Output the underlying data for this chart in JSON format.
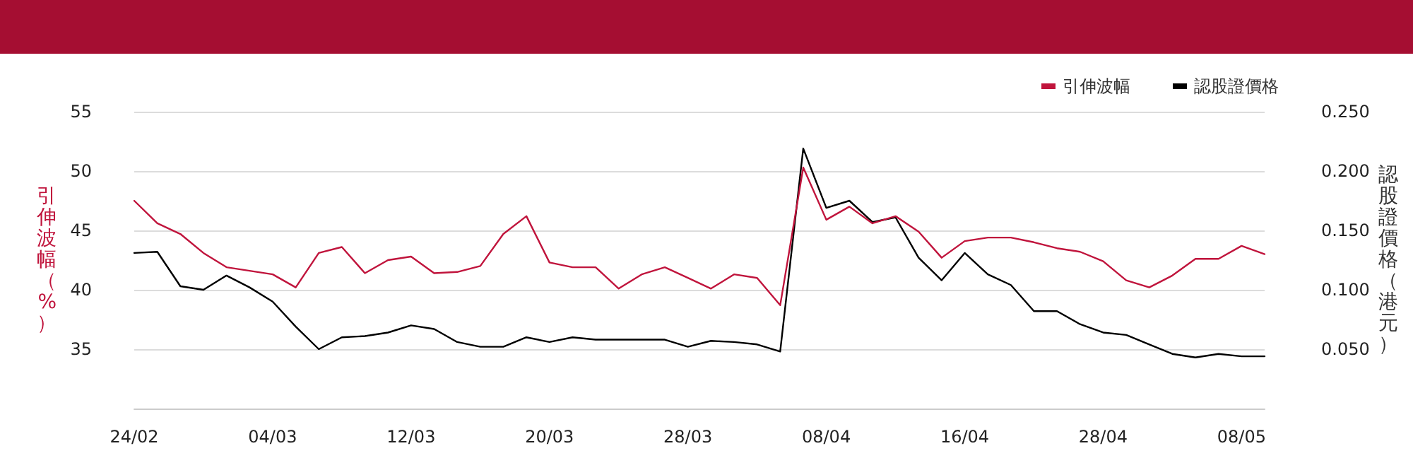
{
  "chart_data": {
    "type": "line",
    "ylabel": "引伸波幅（%）",
    "y2label": "認股證價格（港元）",
    "categories": [
      "24/02",
      null,
      null,
      null,
      null,
      null,
      "04/03",
      null,
      null,
      null,
      null,
      null,
      "12/03",
      null,
      null,
      null,
      null,
      null,
      "20/03",
      null,
      null,
      null,
      null,
      null,
      "28/03",
      null,
      null,
      null,
      null,
      null,
      "08/04",
      null,
      null,
      null,
      null,
      null,
      "16/04",
      null,
      null,
      null,
      null,
      null,
      "28/04",
      null,
      null,
      null,
      null,
      null,
      "08/05",
      null
    ],
    "series": [
      {
        "name": "引伸波幅",
        "color": "#c0143c",
        "values": [
          47.5,
          45.6,
          44.7,
          43.1,
          41.9,
          41.6,
          41.3,
          40.2,
          43.1,
          43.6,
          41.4,
          42.5,
          42.8,
          41.4,
          41.5,
          42.0,
          44.7,
          46.2,
          42.3,
          41.9,
          41.9,
          40.1,
          41.3,
          41.9,
          41.0,
          40.1,
          41.3,
          41.0,
          38.7,
          50.3,
          45.9,
          47.0,
          45.6,
          46.2,
          44.9,
          42.7,
          44.1,
          44.4,
          44.4,
          44.0,
          43.5,
          43.2,
          42.4,
          40.8,
          40.2,
          41.2,
          42.6,
          42.6,
          43.7,
          43.0
        ]
      },
      {
        "name": "認股證價格",
        "color": "#000000",
        "axis": "y2",
        "values": [
          0.131,
          0.132,
          0.103,
          0.1,
          0.112,
          0.102,
          0.09,
          0.069,
          0.05,
          0.06,
          0.061,
          0.064,
          0.07,
          0.067,
          0.056,
          0.052,
          0.052,
          0.06,
          0.056,
          0.06,
          0.058,
          0.058,
          0.058,
          0.058,
          0.052,
          0.057,
          0.056,
          0.054,
          0.048,
          0.219,
          0.169,
          0.175,
          0.157,
          0.161,
          0.127,
          0.108,
          0.131,
          0.113,
          0.104,
          0.082,
          0.082,
          0.071,
          0.064,
          0.062,
          0.054,
          0.046,
          0.043,
          0.046,
          0.044,
          0.044
        ]
      }
    ],
    "ylim": [
      30,
      55
    ],
    "yticks": [
      35,
      40,
      45,
      50,
      55
    ],
    "y2lim": [
      0,
      0.25
    ],
    "y2ticks": [
      {
        "value": 0.05,
        "label": "0.050"
      },
      {
        "value": 0.1,
        "label": "0.100"
      },
      {
        "value": 0.15,
        "label": "0.150"
      },
      {
        "value": 0.2,
        "label": "0.200"
      },
      {
        "value": 0.25,
        "label": "0.250"
      }
    ],
    "grid": "y",
    "legend": "top right",
    "marker": "none",
    "line_style": "solid"
  }
}
